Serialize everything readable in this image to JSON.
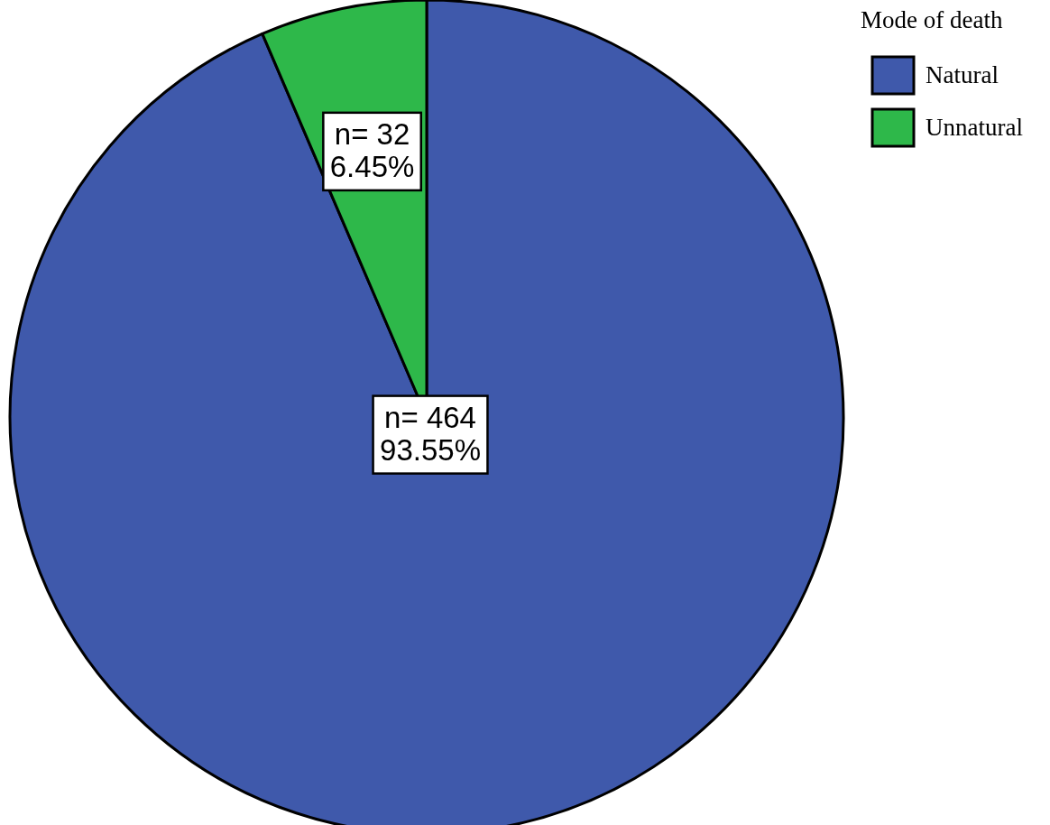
{
  "chart_data": {
    "type": "pie",
    "categories": [
      "Natural",
      "Unnatural"
    ],
    "values": [
      464,
      32
    ],
    "colors": [
      "#3f59ab",
      "#2eb84a"
    ],
    "value_labels": [
      "n= 464\n93.55%",
      "n= 32\n6.45%"
    ],
    "legend_title": "Mode of death",
    "legend": "top right"
  }
}
